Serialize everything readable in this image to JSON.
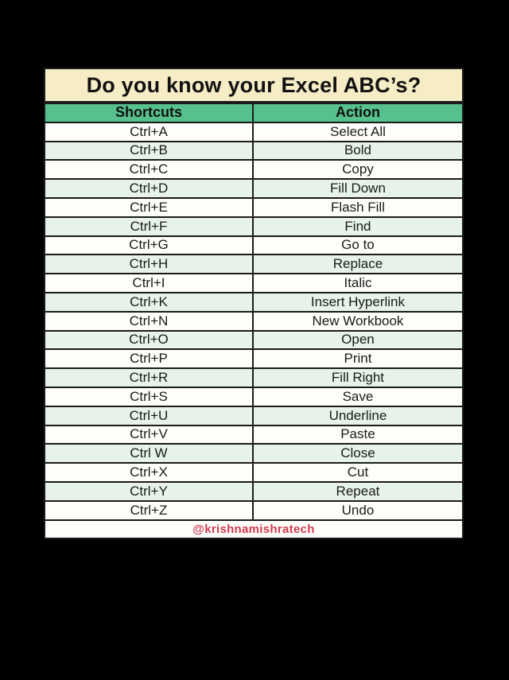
{
  "page": {
    "background_color": "#000000"
  },
  "poster": {
    "title": "Do you know your Excel ABC’s?",
    "colors": {
      "title_bg": "#f6ecc5",
      "header_bg": "#57c18d",
      "row_bg": "#fdfdfa",
      "row_alt_bg": "#e7f2ea",
      "border": "#1b1b1b",
      "text": "#1a1a1a",
      "footer_text": "#d23b4f"
    },
    "table": {
      "columns": [
        "Shortcuts",
        "Action"
      ],
      "rows": [
        {
          "shortcut": "Ctrl+A",
          "action": "Select All"
        },
        {
          "shortcut": "Ctrl+B",
          "action": "Bold"
        },
        {
          "shortcut": "Ctrl+C",
          "action": "Copy"
        },
        {
          "shortcut": "Ctrl+D",
          "action": "Fill Down"
        },
        {
          "shortcut": "Ctrl+E",
          "action": "Flash Fill"
        },
        {
          "shortcut": "Ctrl+F",
          "action": "Find"
        },
        {
          "shortcut": "Ctrl+G",
          "action": "Go to"
        },
        {
          "shortcut": "Ctrl+H",
          "action": "Replace"
        },
        {
          "shortcut": "Ctrl+I",
          "action": "Italic"
        },
        {
          "shortcut": "Ctrl+K",
          "action": "Insert Hyperlink"
        },
        {
          "shortcut": "Ctrl+N",
          "action": "New Workbook"
        },
        {
          "shortcut": "Ctrl+O",
          "action": "Open"
        },
        {
          "shortcut": "Ctrl+P",
          "action": "Print"
        },
        {
          "shortcut": "Ctrl+R",
          "action": "Fill Right"
        },
        {
          "shortcut": "Ctrl+S",
          "action": "Save"
        },
        {
          "shortcut": "Ctrl+U",
          "action": "Underline"
        },
        {
          "shortcut": "Ctrl+V",
          "action": "Paste"
        },
        {
          "shortcut": "Ctrl W",
          "action": "Close"
        },
        {
          "shortcut": "Ctrl+X",
          "action": "Cut"
        },
        {
          "shortcut": "Ctrl+Y",
          "action": "Repeat"
        },
        {
          "shortcut": "Ctrl+Z",
          "action": "Undo"
        }
      ]
    },
    "footer": {
      "handle": "@krishnamishratech"
    }
  }
}
